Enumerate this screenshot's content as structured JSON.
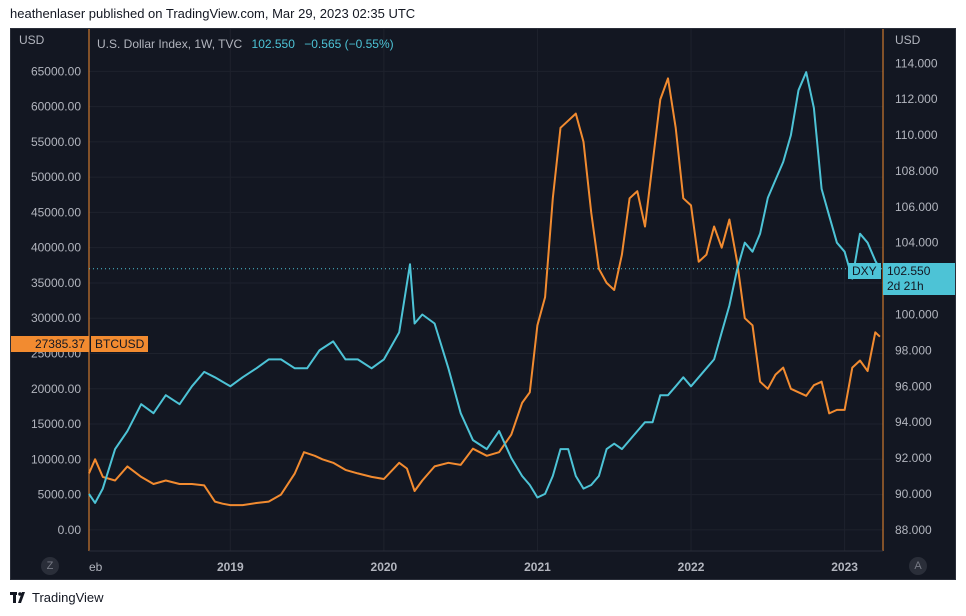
{
  "header": {
    "publisher_line": "heathenlaser published on TradingView.com, Mar 29, 2023 02:35 UTC"
  },
  "footer": {
    "brand": "TradingView"
  },
  "chart_data": {
    "type": "line",
    "legend": {
      "symbol": "U.S. Dollar Index, 1W, TVC",
      "last": "102.550",
      "change": "−0.565 (−0.55%)"
    },
    "left_axis": {
      "unit": "USD",
      "range": [
        -3000,
        71000
      ],
      "ticks": [
        "0.00",
        "5000.00",
        "10000.00",
        "15000.00",
        "20000.00",
        "25000.00",
        "30000.00",
        "35000.00",
        "40000.00",
        "45000.00",
        "50000.00",
        "55000.00",
        "60000.00",
        "65000.00"
      ]
    },
    "right_axis": {
      "unit": "USD",
      "range": [
        86.82,
        115.91
      ],
      "ticks": [
        "88.000",
        "90.000",
        "92.000",
        "94.000",
        "96.000",
        "98.000",
        "100.000",
        "102.000",
        "104.000",
        "106.000",
        "108.000",
        "110.000",
        "112.000",
        "114.000"
      ]
    },
    "x_range": [
      2018.08,
      2023.25
    ],
    "x_tick_labels": [
      {
        "label": "eb",
        "x": 2018.08
      },
      {
        "label": "2019",
        "x": 2019.0
      },
      {
        "label": "2020",
        "x": 2020.0
      },
      {
        "label": "2021",
        "x": 2021.0
      },
      {
        "label": "2022",
        "x": 2022.0
      },
      {
        "label": "2023",
        "x": 2023.0
      }
    ],
    "series": [
      {
        "name": "BTCUSD",
        "axis": "left",
        "color": "#f28b30",
        "last_value": "27385.37",
        "x": [
          2018.08,
          2018.12,
          2018.17,
          2018.25,
          2018.33,
          2018.42,
          2018.5,
          2018.58,
          2018.67,
          2018.75,
          2018.83,
          2018.9,
          2018.95,
          2019.0,
          2019.08,
          2019.17,
          2019.25,
          2019.33,
          2019.42,
          2019.48,
          2019.55,
          2019.6,
          2019.67,
          2019.75,
          2019.83,
          2019.92,
          2020.0,
          2020.1,
          2020.15,
          2020.2,
          2020.25,
          2020.33,
          2020.42,
          2020.5,
          2020.58,
          2020.67,
          2020.75,
          2020.83,
          2020.9,
          2020.95,
          2021.0,
          2021.05,
          2021.1,
          2021.15,
          2021.2,
          2021.25,
          2021.3,
          2021.35,
          2021.4,
          2021.45,
          2021.5,
          2021.55,
          2021.6,
          2021.65,
          2021.7,
          2021.75,
          2021.8,
          2021.85,
          2021.9,
          2021.95,
          2022.0,
          2022.05,
          2022.1,
          2022.15,
          2022.2,
          2022.25,
          2022.3,
          2022.35,
          2022.4,
          2022.45,
          2022.5,
          2022.55,
          2022.6,
          2022.65,
          2022.7,
          2022.75,
          2022.8,
          2022.85,
          2022.9,
          2022.95,
          2023.0,
          2023.05,
          2023.1,
          2023.15,
          2023.2,
          2023.23
        ],
        "y": [
          8000,
          10000,
          7500,
          7000,
          9000,
          7500,
          6500,
          7000,
          6500,
          6500,
          6300,
          4000,
          3700,
          3500,
          3500,
          3800,
          4000,
          5000,
          8000,
          11000,
          10500,
          10000,
          9500,
          8500,
          8000,
          7500,
          7200,
          9500,
          8700,
          5500,
          7000,
          9000,
          9500,
          9200,
          11500,
          10500,
          11000,
          13500,
          18000,
          19500,
          29000,
          33000,
          47000,
          57000,
          58000,
          59000,
          55000,
          45000,
          37000,
          35000,
          34000,
          39000,
          47000,
          48000,
          43000,
          52000,
          61000,
          64000,
          57000,
          47000,
          46000,
          38000,
          39000,
          43000,
          40000,
          44000,
          38000,
          30000,
          29000,
          21000,
          20000,
          22000,
          23000,
          20000,
          19500,
          19000,
          20500,
          21000,
          16500,
          17000,
          17000,
          23000,
          24000,
          22500,
          28000,
          27385
        ]
      },
      {
        "name": "DXY",
        "axis": "right",
        "color": "#4dc3d6",
        "last_value": "102.550",
        "countdown": "2d 21h",
        "x": [
          2018.08,
          2018.12,
          2018.17,
          2018.25,
          2018.33,
          2018.42,
          2018.5,
          2018.58,
          2018.67,
          2018.75,
          2018.83,
          2018.9,
          2019.0,
          2019.08,
          2019.17,
          2019.25,
          2019.33,
          2019.42,
          2019.5,
          2019.58,
          2019.67,
          2019.75,
          2019.83,
          2019.92,
          2020.0,
          2020.1,
          2020.17,
          2020.2,
          2020.25,
          2020.33,
          2020.42,
          2020.5,
          2020.58,
          2020.67,
          2020.75,
          2020.83,
          2020.9,
          2020.95,
          2021.0,
          2021.05,
          2021.1,
          2021.15,
          2021.2,
          2021.25,
          2021.3,
          2021.35,
          2021.4,
          2021.45,
          2021.5,
          2021.55,
          2021.6,
          2021.65,
          2021.7,
          2021.75,
          2021.8,
          2021.85,
          2021.9,
          2021.95,
          2022.0,
          2022.05,
          2022.1,
          2022.15,
          2022.2,
          2022.25,
          2022.3,
          2022.35,
          2022.4,
          2022.45,
          2022.5,
          2022.55,
          2022.6,
          2022.65,
          2022.7,
          2022.75,
          2022.8,
          2022.85,
          2022.9,
          2022.95,
          2023.0,
          2023.05,
          2023.1,
          2023.15,
          2023.2,
          2023.23
        ],
        "y": [
          90.0,
          89.5,
          90.3,
          92.5,
          93.5,
          95.0,
          94.5,
          95.5,
          95.0,
          96.0,
          96.8,
          96.5,
          96.0,
          96.5,
          97.0,
          97.5,
          97.5,
          97.0,
          97.0,
          98.0,
          98.5,
          97.5,
          97.5,
          97.0,
          97.5,
          99.0,
          102.8,
          99.5,
          100.0,
          99.5,
          97.0,
          94.5,
          93.0,
          92.5,
          93.5,
          92.0,
          91.0,
          90.5,
          89.8,
          90.0,
          91.0,
          92.5,
          92.5,
          91.0,
          90.3,
          90.5,
          91.0,
          92.5,
          92.8,
          92.5,
          93.0,
          93.5,
          94.0,
          94.0,
          95.5,
          95.5,
          96.0,
          96.5,
          96.0,
          96.5,
          97.0,
          97.5,
          99.0,
          100.5,
          102.5,
          104.0,
          103.5,
          104.5,
          106.5,
          107.5,
          108.5,
          110.0,
          112.5,
          113.5,
          111.5,
          107.0,
          105.5,
          104.0,
          103.5,
          102.0,
          104.5,
          104.0,
          103.0,
          102.55
        ]
      }
    ]
  }
}
